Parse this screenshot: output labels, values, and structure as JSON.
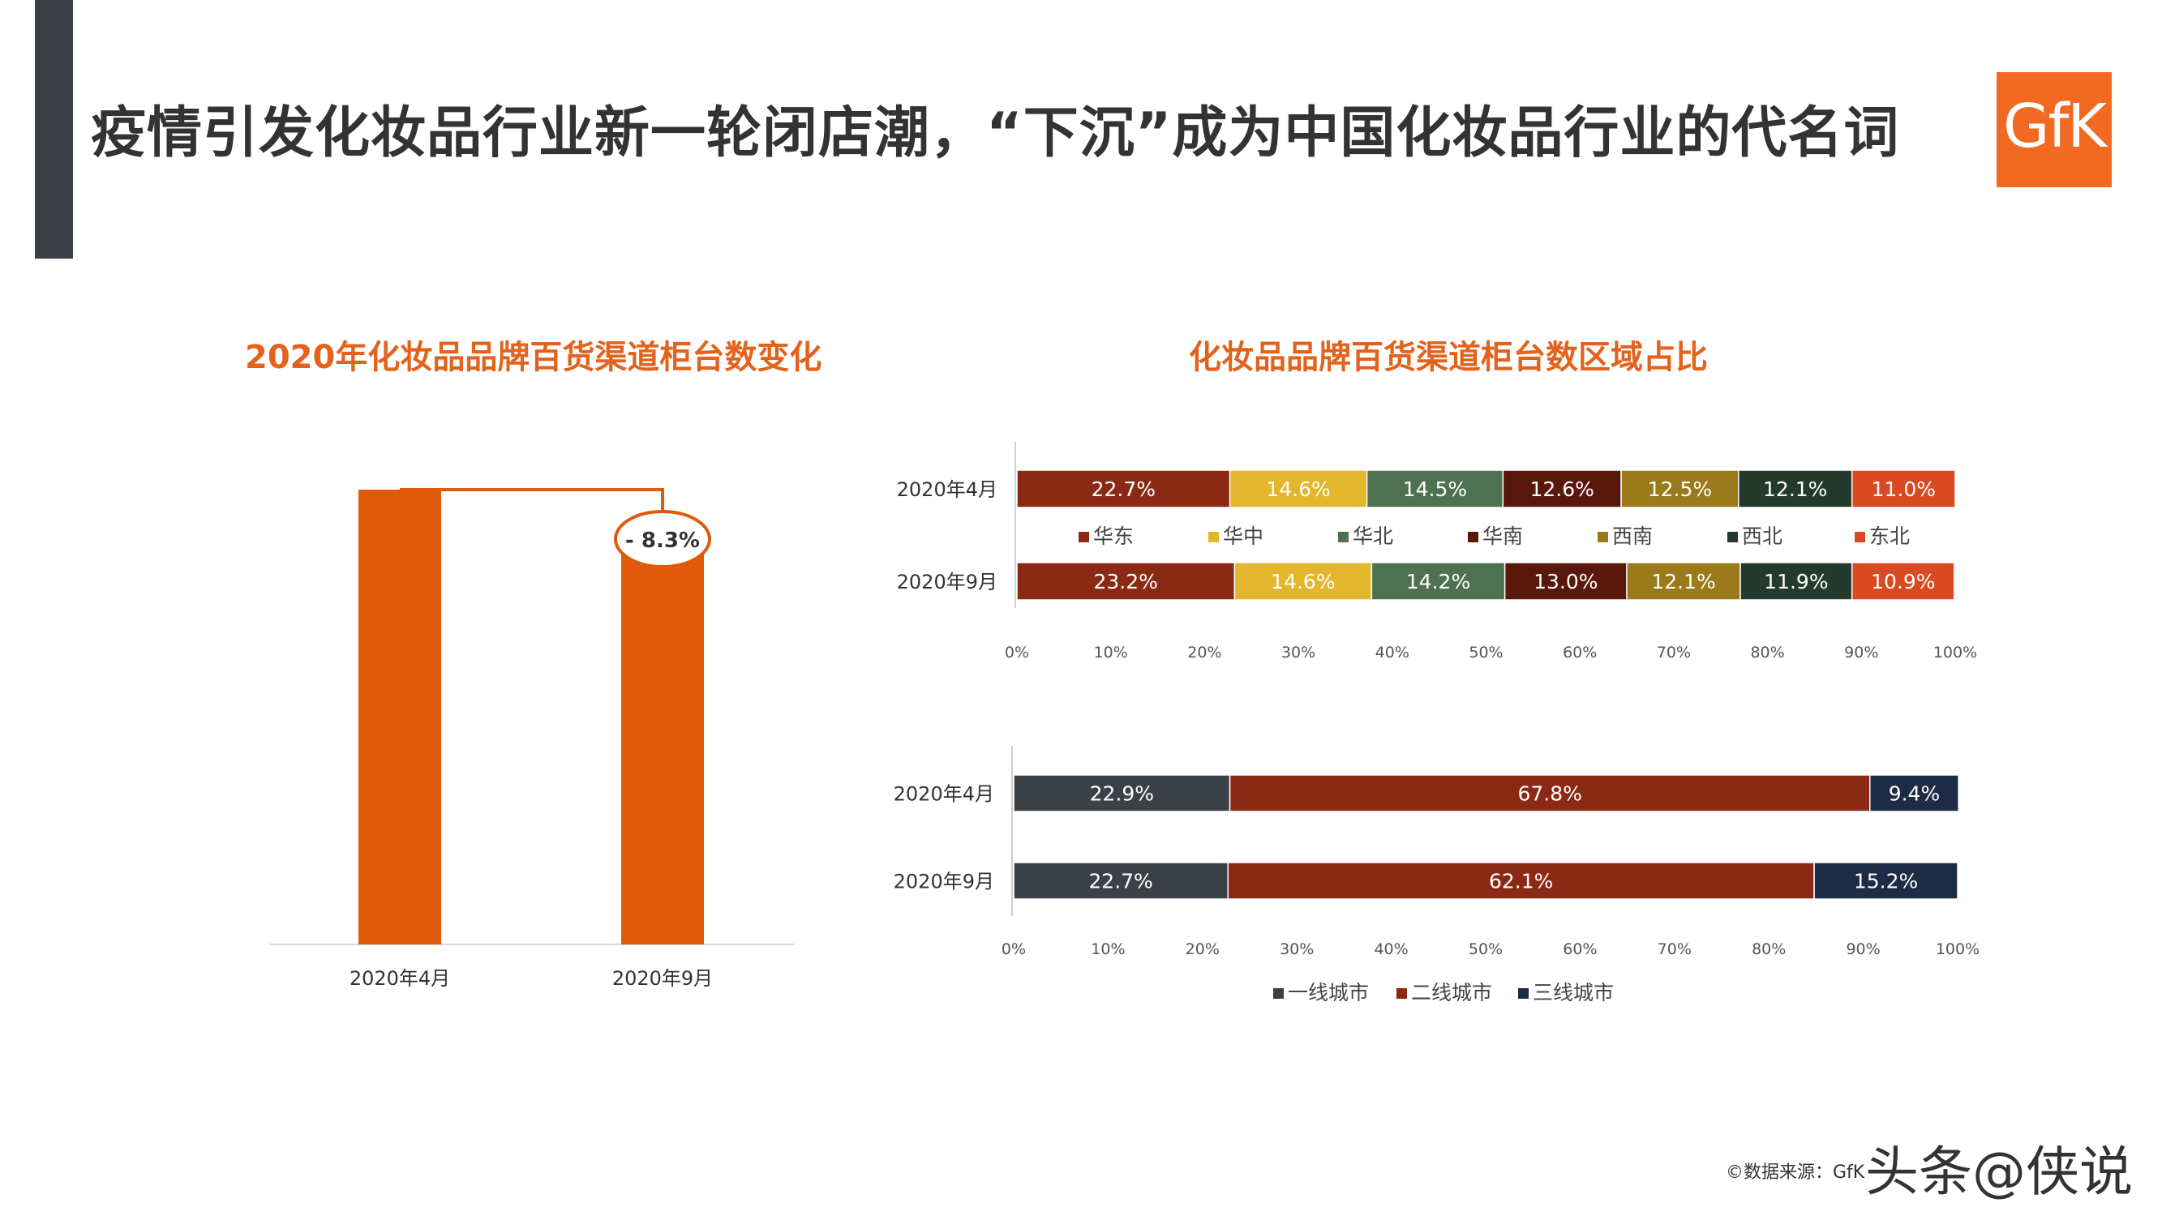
{
  "header": {
    "title": "疫情引发化妆品行业新一轮闭店潮，“下沉”成为中国化妆品行业的代名词",
    "logo_text": "GfK"
  },
  "footer": {
    "source": "©数据来源：GfK",
    "watermark": "头条@侠说"
  },
  "colors": {
    "accent": "#e05a0c",
    "title_orange": "#e3621c"
  },
  "chart_data": [
    {
      "type": "bar",
      "title": "2020年化妆品品牌百货渠道柜台数变化",
      "categories": [
        "2020年4月",
        "2020年9月"
      ],
      "values": [
        100,
        91.7
      ],
      "ylim": [
        0,
        100
      ],
      "annotation": "- 8.3%",
      "grid": false,
      "color": "#e05a0c"
    },
    {
      "type": "bar",
      "stacked": "percent",
      "orientation": "horizontal",
      "title": "化妆品品牌百货渠道柜台数区域占比",
      "categories": [
        "2020年4月",
        "2020年9月"
      ],
      "xlim": [
        0,
        100
      ],
      "xticks": [
        "0%",
        "10%",
        "20%",
        "30%",
        "40%",
        "50%",
        "60%",
        "70%",
        "80%",
        "90%",
        "100%"
      ],
      "legend_position": "between-bars",
      "series": [
        {
          "name": "华东",
          "color": "#8b2a14",
          "values": [
            22.7,
            23.2
          ],
          "labels": [
            "22.7%",
            "23.2%"
          ]
        },
        {
          "name": "华中",
          "color": "#e3b62d",
          "values": [
            14.6,
            14.6
          ],
          "labels": [
            "14.6%",
            "14.6%"
          ]
        },
        {
          "name": "华北",
          "color": "#4e7152",
          "values": [
            14.5,
            14.2
          ],
          "labels": [
            "14.5%",
            "14.2%"
          ]
        },
        {
          "name": "华南",
          "color": "#5a170c",
          "values": [
            12.6,
            13.0
          ],
          "labels": [
            "12.6%",
            "13.0%"
          ]
        },
        {
          "name": "西南",
          "color": "#9a7a1a",
          "values": [
            12.5,
            12.1
          ],
          "labels": [
            "12.5%",
            "12.1%"
          ]
        },
        {
          "name": "西北",
          "color": "#243a2c",
          "values": [
            12.1,
            11.9
          ],
          "labels": [
            "12.1%",
            "11.9%"
          ]
        },
        {
          "name": "东北",
          "color": "#d94a22",
          "values": [
            11.0,
            10.9
          ],
          "labels": [
            "11.0%",
            "10.9%"
          ]
        }
      ]
    },
    {
      "type": "bar",
      "stacked": "percent",
      "orientation": "horizontal",
      "categories": [
        "2020年4月",
        "2020年9月"
      ],
      "xlim": [
        0,
        100
      ],
      "xticks": [
        "0%",
        "10%",
        "20%",
        "30%",
        "40%",
        "50%",
        "60%",
        "70%",
        "80%",
        "90%",
        "100%"
      ],
      "legend_position": "bottom",
      "series": [
        {
          "name": "一线城市",
          "color": "#3c4148",
          "values": [
            22.9,
            22.7
          ],
          "labels": [
            "22.9%",
            "22.7%"
          ]
        },
        {
          "name": "二线城市",
          "color": "#8b2a14",
          "values": [
            67.8,
            62.1
          ],
          "labels": [
            "67.8%",
            "62.1%"
          ]
        },
        {
          "name": "三线城市",
          "color": "#1e2b45",
          "values": [
            9.4,
            15.2
          ],
          "labels": [
            "9.4%",
            "15.2%"
          ]
        }
      ]
    }
  ]
}
